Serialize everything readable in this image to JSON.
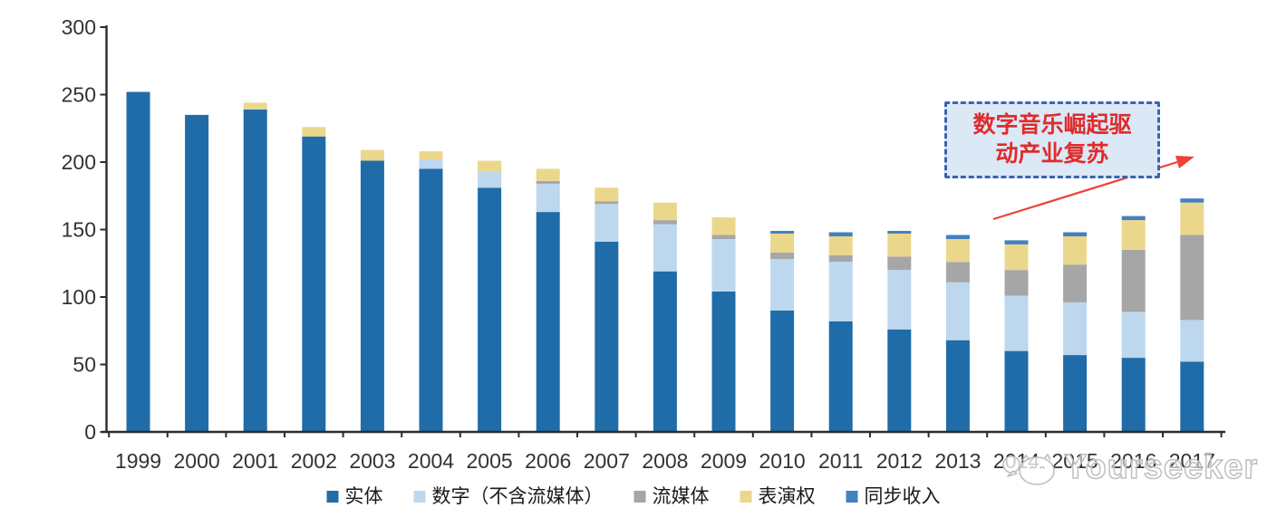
{
  "chart_data": {
    "type": "bar",
    "stacked": true,
    "title": "",
    "xlabel": "",
    "ylabel": "",
    "categories": [
      "1999",
      "2000",
      "2001",
      "2002",
      "2003",
      "2004",
      "2005",
      "2006",
      "2007",
      "2008",
      "2009",
      "2010",
      "2011",
      "2012",
      "2013",
      "2014",
      "2015",
      "2016",
      "2017"
    ],
    "series": [
      {
        "name": "实体",
        "color": "#1f6ca8",
        "values": [
          252,
          235,
          239,
          219,
          201,
          195,
          181,
          163,
          141,
          119,
          104,
          90,
          82,
          76,
          68,
          60,
          57,
          55,
          52
        ]
      },
      {
        "name": "数字（不含流媒体）",
        "color": "#bdd7ee",
        "values": [
          0,
          0,
          0,
          0,
          0,
          7,
          12,
          21,
          28,
          35,
          39,
          38,
          44,
          44,
          43,
          41,
          39,
          34,
          31
        ]
      },
      {
        "name": "流媒体",
        "color": "#a6a6a6",
        "values": [
          0,
          0,
          0,
          0,
          0,
          0,
          0,
          2,
          2,
          3,
          3,
          5,
          5,
          10,
          15,
          19,
          28,
          46,
          63
        ]
      },
      {
        "name": "表演权",
        "color": "#ebd78c",
        "values": [
          0,
          0,
          5,
          7,
          8,
          6,
          8,
          9,
          10,
          13,
          13,
          14,
          14,
          17,
          17,
          19,
          21,
          22,
          24
        ]
      },
      {
        "name": "同步收入",
        "color": "#4580be",
        "values": [
          0,
          0,
          0,
          0,
          0,
          0,
          0,
          0,
          0,
          0,
          0,
          2,
          3,
          2,
          3,
          3,
          3,
          3,
          3
        ]
      }
    ],
    "ylim": [
      0,
      300
    ],
    "yticks": [
      0,
      50,
      100,
      150,
      200,
      250,
      300
    ],
    "grid": false,
    "legend_position": "bottom"
  },
  "annotation": {
    "line1": "数字音乐崛起驱",
    "line2": "动产业复苏"
  },
  "watermark": {
    "text": "Yourseeker"
  },
  "colors": {
    "axis": "#2b2b2b",
    "tick_label": "#333333",
    "annotation_border": "#3a64ae",
    "annotation_fill": "#dbe9f7",
    "annotation_text": "#e02b2b",
    "arrow": "#ef4136",
    "watermark": "#bfbfbf"
  }
}
